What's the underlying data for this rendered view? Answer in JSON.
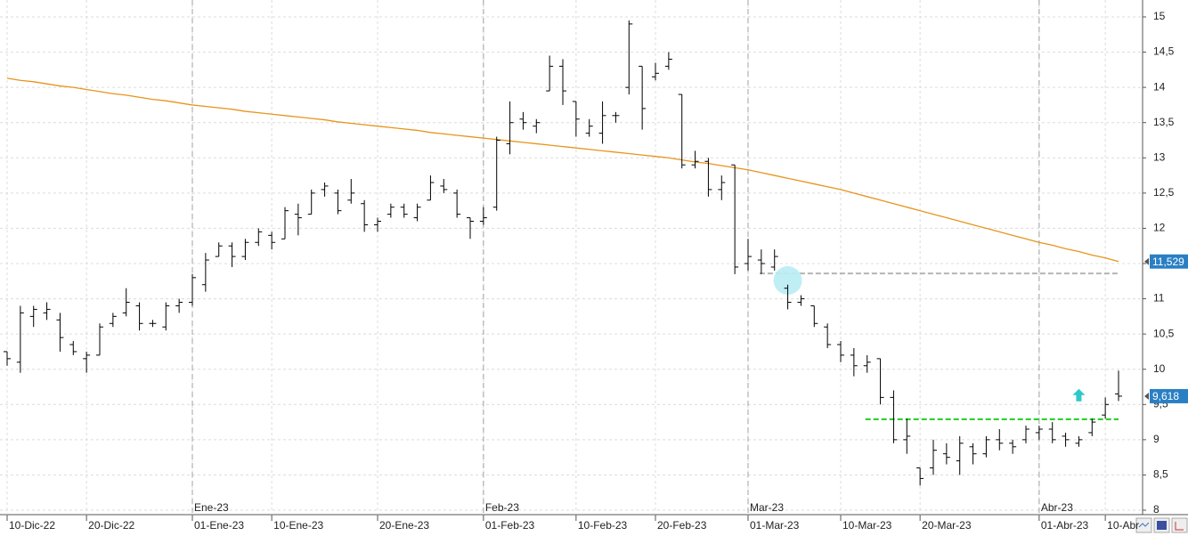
{
  "chart_data": {
    "type": "ohlc",
    "categories": [
      "10-Dic-22",
      null,
      null,
      null,
      null,
      null,
      "20-Dic-22",
      null,
      null,
      null,
      null,
      null,
      null,
      null,
      "01-Ene-23",
      null,
      null,
      null,
      null,
      null,
      "10-Ene-23",
      null,
      null,
      null,
      null,
      null,
      null,
      null,
      "20-Ene-23",
      null,
      null,
      null,
      null,
      null,
      null,
      null,
      "01-Feb-23",
      null,
      null,
      null,
      null,
      null,
      null,
      "10-Feb-23",
      null,
      null,
      null,
      null,
      null,
      "20-Feb-23",
      null,
      null,
      null,
      null,
      null,
      null,
      "01-Mar-23",
      null,
      null,
      null,
      null,
      null,
      null,
      "10-Mar-23",
      null,
      null,
      null,
      null,
      null,
      "20-Mar-23",
      null,
      null,
      null,
      null,
      null,
      null,
      null,
      null,
      "01-Abr-23",
      null,
      null,
      null,
      null,
      "10-Abr",
      null
    ],
    "periods": [
      {
        "label": "Ene-23",
        "at": "01-Ene-23"
      },
      {
        "label": "Feb-23",
        "at": "01-Feb-23"
      },
      {
        "label": "Mar-23",
        "at": "01-Mar-23"
      },
      {
        "label": "Abr-23",
        "at": "01-Abr-23"
      }
    ],
    "color": "#000000",
    "open": [
      10.25,
      10.1,
      10.75,
      10.8,
      10.7,
      10.35,
      10.15,
      10.2,
      10.65,
      10.8,
      10.9,
      10.65,
      10.6,
      10.9,
      10.95,
      11.2,
      11.6,
      11.75,
      11.6,
      11.8,
      11.9,
      11.85,
      12.2,
      12.2,
      12.55,
      12.5,
      12.4,
      12.35,
      12.05,
      12.2,
      12.3,
      12.15,
      12.4,
      12.6,
      12.5,
      12.15,
      12.1,
      12.3,
      13.2,
      13.55,
      13.45,
      13.95,
      14.3,
      13.8,
      13.35,
      13.35,
      13.6,
      14.0,
      14.3,
      14.15,
      14.3,
      13.9,
      12.9,
      12.95,
      12.55,
      12.9,
      11.5,
      11.55,
      11.45,
      11.15,
      10.95,
      10.9,
      10.6,
      10.35,
      10.2,
      10.05,
      10.15,
      9.6,
      9.0,
      8.6,
      8.6,
      8.8,
      8.7,
      8.9,
      8.8,
      9.0,
      8.95,
      9.0,
      9.1,
      9.15,
      9.05,
      8.95,
      9.1,
      9.35,
      9.65
    ],
    "high": [
      10.25,
      10.9,
      10.9,
      10.95,
      10.8,
      10.4,
      10.25,
      10.65,
      10.8,
      11.15,
      10.95,
      10.7,
      10.95,
      11.0,
      11.35,
      11.65,
      11.8,
      11.8,
      11.85,
      12.0,
      11.95,
      12.3,
      12.35,
      12.55,
      12.65,
      12.55,
      12.7,
      12.4,
      12.15,
      12.35,
      12.35,
      12.35,
      12.75,
      12.7,
      12.55,
      12.15,
      12.3,
      13.3,
      13.8,
      13.65,
      13.55,
      14.45,
      14.4,
      13.8,
      13.55,
      13.8,
      13.65,
      14.95,
      14.3,
      14.35,
      14.5,
      13.9,
      13.1,
      13.0,
      12.75,
      12.9,
      11.85,
      11.7,
      11.7,
      11.2,
      11.05,
      10.9,
      10.65,
      10.4,
      10.3,
      10.2,
      10.15,
      9.7,
      9.3,
      8.6,
      9.0,
      8.95,
      9.05,
      8.95,
      9.05,
      9.15,
      9.0,
      9.2,
      9.2,
      9.25,
      9.1,
      9.05,
      9.3,
      9.6,
      9.98
    ],
    "low": [
      10.05,
      9.95,
      10.6,
      10.7,
      10.25,
      10.2,
      9.95,
      10.2,
      10.6,
      10.75,
      10.55,
      10.6,
      10.55,
      10.8,
      10.9,
      11.1,
      11.6,
      11.45,
      11.55,
      11.75,
      11.7,
      11.85,
      11.9,
      12.2,
      12.45,
      12.2,
      12.35,
      11.95,
      11.95,
      12.15,
      12.15,
      12.1,
      12.4,
      12.5,
      12.15,
      11.85,
      12.05,
      12.25,
      13.05,
      13.4,
      13.35,
      13.95,
      13.75,
      13.3,
      13.3,
      13.2,
      13.5,
      13.9,
      13.4,
      14.1,
      14.25,
      12.85,
      12.85,
      12.45,
      12.4,
      11.35,
      11.4,
      11.35,
      11.4,
      10.85,
      10.9,
      10.6,
      10.3,
      10.1,
      9.9,
      9.95,
      9.5,
      8.95,
      8.8,
      8.35,
      8.5,
      8.65,
      8.5,
      8.65,
      8.75,
      8.85,
      8.8,
      8.95,
      9.0,
      8.95,
      8.9,
      8.9,
      9.05,
      9.3,
      9.55
    ],
    "close": [
      10.15,
      10.8,
      10.85,
      10.85,
      10.45,
      10.25,
      10.2,
      10.6,
      10.75,
      10.95,
      10.65,
      10.65,
      10.9,
      10.95,
      11.3,
      11.55,
      11.75,
      11.6,
      11.8,
      11.95,
      11.8,
      12.25,
      12.15,
      12.5,
      12.6,
      12.25,
      12.5,
      12.05,
      12.1,
      12.3,
      12.2,
      12.3,
      12.65,
      12.55,
      12.2,
      12.1,
      12.15,
      13.25,
      13.5,
      13.5,
      13.5,
      14.3,
      13.95,
      13.55,
      13.45,
      13.6,
      13.6,
      14.9,
      13.7,
      14.2,
      14.4,
      12.9,
      12.95,
      12.55,
      12.65,
      11.45,
      11.6,
      11.5,
      11.6,
      10.95,
      11.0,
      10.65,
      10.35,
      10.2,
      10.05,
      10.1,
      9.6,
      9.0,
      9.05,
      8.45,
      8.85,
      8.75,
      8.95,
      8.8,
      9.0,
      8.95,
      8.9,
      9.15,
      9.15,
      9.0,
      9.0,
      9.0,
      9.25,
      9.5,
      9.618
    ],
    "close_value_labels": [
      null,
      null,
      null,
      null,
      null,
      null,
      null,
      null,
      null,
      null,
      null,
      null,
      null,
      null,
      null,
      null,
      null,
      null,
      null,
      null,
      null,
      null,
      null,
      null,
      null,
      null,
      null,
      null,
      null,
      null,
      null,
      null,
      null,
      null,
      null,
      null,
      null,
      null,
      null,
      null,
      null,
      null,
      null,
      null,
      null,
      null,
      null,
      null,
      null,
      null,
      null,
      null,
      null,
      null,
      null,
      null,
      null,
      null,
      null,
      null,
      null,
      null,
      null,
      null,
      null,
      null,
      null,
      null,
      null,
      null,
      null,
      null,
      null,
      null,
      null,
      null,
      null,
      null,
      null,
      null,
      null,
      null,
      null,
      null,
      "9,618"
    ],
    "moving_average": {
      "color": "#e8941c",
      "values": [
        14.13,
        14.1,
        14.08,
        14.05,
        14.02,
        14.0,
        13.97,
        13.94,
        13.91,
        13.89,
        13.86,
        13.83,
        13.81,
        13.78,
        13.75,
        13.73,
        13.71,
        13.69,
        13.66,
        13.64,
        13.62,
        13.6,
        13.58,
        13.56,
        13.54,
        13.51,
        13.49,
        13.47,
        13.45,
        13.43,
        13.41,
        13.39,
        13.36,
        13.34,
        13.32,
        13.3,
        13.28,
        13.26,
        13.24,
        13.22,
        13.2,
        13.18,
        13.16,
        13.14,
        13.12,
        13.1,
        13.08,
        13.06,
        13.04,
        13.02,
        13.0,
        12.97,
        12.94,
        12.92,
        12.89,
        12.86,
        12.83,
        12.79,
        12.75,
        12.71,
        12.67,
        12.63,
        12.59,
        12.55,
        12.5,
        12.45,
        12.4,
        12.35,
        12.3,
        12.25,
        12.2,
        12.15,
        12.1,
        12.05,
        12.0,
        11.95,
        11.9,
        11.85,
        11.8,
        11.76,
        11.71,
        11.67,
        11.62,
        11.58,
        11.529
      ],
      "value_labels": [
        null,
        null,
        null,
        null,
        null,
        null,
        null,
        null,
        null,
        null,
        null,
        null,
        null,
        null,
        null,
        null,
        null,
        null,
        null,
        null,
        null,
        null,
        null,
        null,
        null,
        null,
        null,
        null,
        null,
        null,
        null,
        null,
        null,
        null,
        null,
        null,
        null,
        null,
        null,
        null,
        null,
        null,
        null,
        null,
        null,
        null,
        null,
        null,
        null,
        null,
        null,
        null,
        null,
        null,
        null,
        null,
        null,
        null,
        null,
        null,
        null,
        null,
        null,
        null,
        null,
        null,
        null,
        null,
        null,
        null,
        null,
        null,
        null,
        null,
        null,
        null,
        null,
        null,
        null,
        null,
        null,
        null,
        null,
        null,
        "11,529"
      ]
    },
    "levels": [
      {
        "value": 11.36,
        "from": 57,
        "color": "#b4b4b4"
      },
      {
        "value": 9.29,
        "from": 65,
        "color": "#22cc22"
      }
    ],
    "markers": [
      {
        "shape": "circle",
        "index": 59,
        "value": 11.26,
        "color": "#b8ecf4"
      },
      {
        "shape": "arrow-up",
        "index": 81,
        "value": 9.62,
        "color": "#2ec8c8"
      }
    ],
    "label_color": "#2a7fc4",
    "ylim": [
      8,
      15
    ],
    "yticks": [
      8,
      {
        "value": 8.5,
        "label": "8,5"
      },
      9,
      {
        "value": 9.5,
        "label": "9,5"
      },
      10,
      {
        "value": 10.5,
        "label": "10,5"
      },
      11,
      {
        "value": 11.5,
        "label": "11,5"
      },
      12,
      {
        "value": 12.5,
        "label": "12,5"
      },
      13,
      {
        "value": 13.5,
        "label": "13,5"
      },
      14,
      {
        "value": 14.5,
        "label": "14,5"
      },
      15
    ],
    "grid": true
  }
}
